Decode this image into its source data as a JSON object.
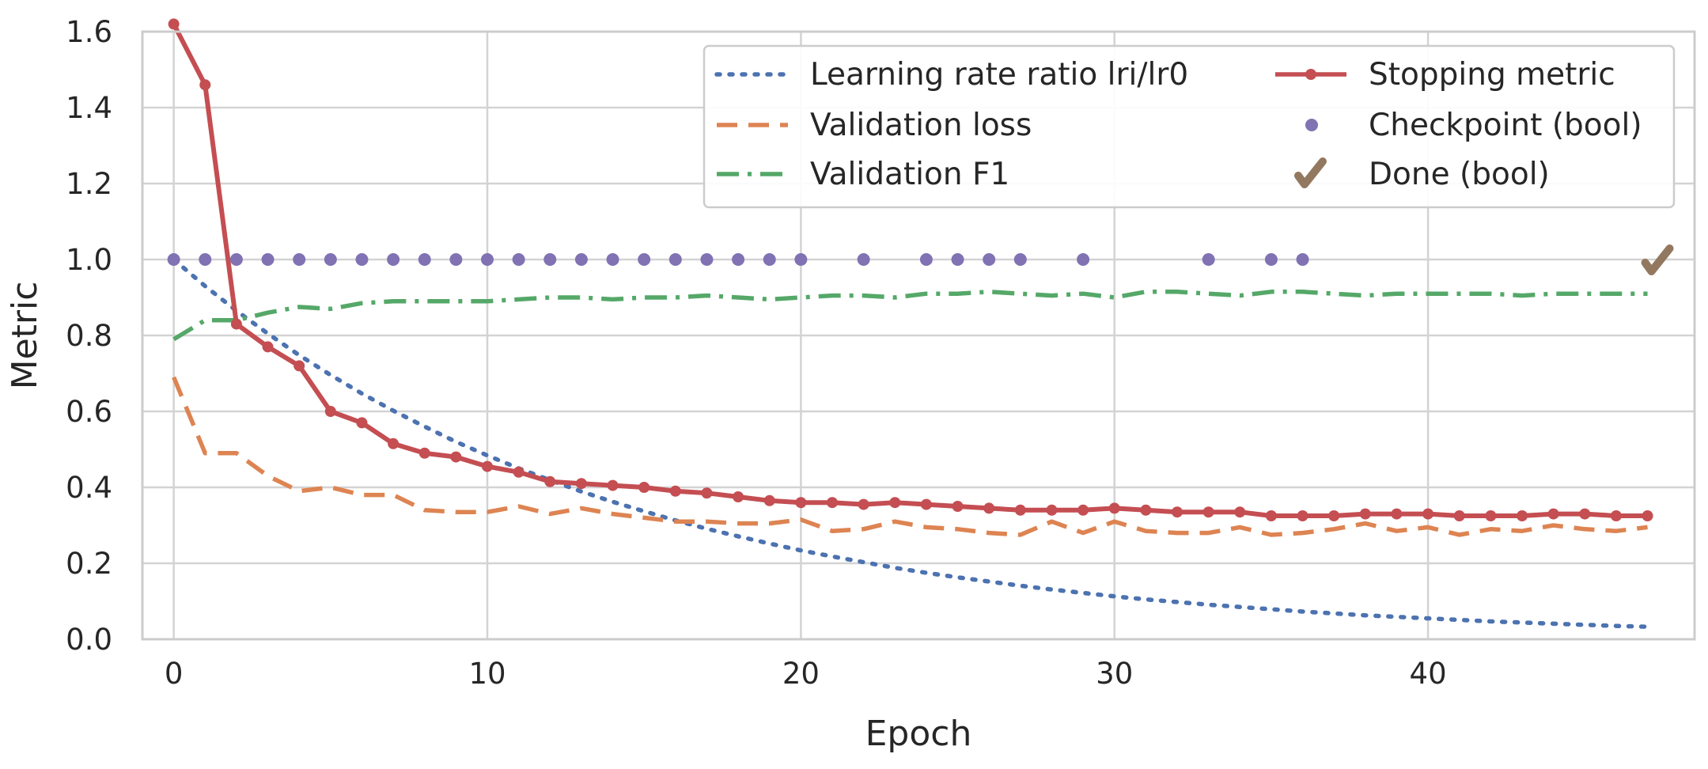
{
  "chart_data": {
    "type": "line",
    "title": "",
    "xlabel": "Epoch",
    "ylabel": "Metric",
    "xlim": [
      -1,
      48.5
    ],
    "ylim": [
      0,
      1.6
    ],
    "xticks": [
      "0",
      "10",
      "20",
      "30",
      "40"
    ],
    "xtick_values": [
      0,
      10,
      20,
      30,
      40
    ],
    "yticks": [
      "0.0",
      "0.2",
      "0.4",
      "0.6",
      "0.8",
      "1.0",
      "1.2",
      "1.4",
      "1.6"
    ],
    "ytick_values": [
      0,
      0.2,
      0.4,
      0.6,
      0.8,
      1.0,
      1.2,
      1.4,
      1.6
    ],
    "grid": true,
    "legend_position": "top-right",
    "series": [
      {
        "name": "Learning rate ratio lri/lr0",
        "style": "dotted",
        "color": "#4C72B0",
        "x": [
          0,
          1,
          2,
          3,
          4,
          5,
          6,
          7,
          8,
          9,
          10,
          11,
          12,
          13,
          14,
          15,
          16,
          17,
          18,
          19,
          20,
          21,
          22,
          23,
          24,
          25,
          26,
          27,
          28,
          29,
          30,
          31,
          32,
          33,
          34,
          35,
          36,
          37,
          38,
          39,
          40,
          41,
          42,
          43,
          44,
          45,
          46,
          47
        ],
        "values": [
          1.0,
          0.93,
          0.865,
          0.805,
          0.748,
          0.696,
          0.647,
          0.602,
          0.56,
          0.52,
          0.484,
          0.45,
          0.419,
          0.389,
          0.362,
          0.337,
          0.313,
          0.291,
          0.271,
          0.252,
          0.234,
          0.218,
          0.203,
          0.188,
          0.175,
          0.163,
          0.152,
          0.141,
          0.131,
          0.122,
          0.113,
          0.105,
          0.098,
          0.091,
          0.085,
          0.079,
          0.073,
          0.068,
          0.063,
          0.059,
          0.055,
          0.051,
          0.047,
          0.044,
          0.041,
          0.038,
          0.035,
          0.033
        ]
      },
      {
        "name": "Validation loss",
        "style": "dashed",
        "color": "#DD8452",
        "x": [
          0,
          1,
          2,
          3,
          4,
          5,
          6,
          7,
          8,
          9,
          10,
          11,
          12,
          13,
          14,
          15,
          16,
          17,
          18,
          19,
          20,
          21,
          22,
          23,
          24,
          25,
          26,
          27,
          28,
          29,
          30,
          31,
          32,
          33,
          34,
          35,
          36,
          37,
          38,
          39,
          40,
          41,
          42,
          43,
          44,
          45,
          46,
          47
        ],
        "values": [
          0.69,
          0.49,
          0.49,
          0.43,
          0.39,
          0.4,
          0.38,
          0.38,
          0.34,
          0.335,
          0.335,
          0.35,
          0.33,
          0.345,
          0.33,
          0.32,
          0.31,
          0.31,
          0.305,
          0.305,
          0.315,
          0.285,
          0.29,
          0.31,
          0.295,
          0.29,
          0.28,
          0.275,
          0.31,
          0.28,
          0.31,
          0.285,
          0.28,
          0.28,
          0.295,
          0.275,
          0.28,
          0.29,
          0.305,
          0.285,
          0.295,
          0.275,
          0.29,
          0.285,
          0.3,
          0.29,
          0.285,
          0.295
        ]
      },
      {
        "name": "Validation F1",
        "style": "dashdot",
        "color": "#55A868",
        "x": [
          0,
          1,
          2,
          3,
          4,
          5,
          6,
          7,
          8,
          9,
          10,
          11,
          12,
          13,
          14,
          15,
          16,
          17,
          18,
          19,
          20,
          21,
          22,
          23,
          24,
          25,
          26,
          27,
          28,
          29,
          30,
          31,
          32,
          33,
          34,
          35,
          36,
          37,
          38,
          39,
          40,
          41,
          42,
          43,
          44,
          45,
          46,
          47
        ],
        "values": [
          0.79,
          0.84,
          0.84,
          0.86,
          0.875,
          0.87,
          0.885,
          0.89,
          0.89,
          0.89,
          0.89,
          0.895,
          0.9,
          0.9,
          0.895,
          0.9,
          0.9,
          0.905,
          0.9,
          0.895,
          0.9,
          0.905,
          0.905,
          0.9,
          0.91,
          0.91,
          0.915,
          0.91,
          0.905,
          0.91,
          0.9,
          0.915,
          0.915,
          0.91,
          0.905,
          0.915,
          0.915,
          0.91,
          0.905,
          0.91,
          0.91,
          0.91,
          0.91,
          0.905,
          0.91,
          0.91,
          0.91,
          0.91
        ]
      },
      {
        "name": "Stopping metric",
        "style": "solid-marker",
        "color": "#C44E52",
        "x": [
          0,
          1,
          2,
          3,
          4,
          5,
          6,
          7,
          8,
          9,
          10,
          11,
          12,
          13,
          14,
          15,
          16,
          17,
          18,
          19,
          20,
          21,
          22,
          23,
          24,
          25,
          26,
          27,
          28,
          29,
          30,
          31,
          32,
          33,
          34,
          35,
          36,
          37,
          38,
          39,
          40,
          41,
          42,
          43,
          44,
          45,
          46,
          47
        ],
        "values": [
          1.62,
          1.46,
          0.83,
          0.77,
          0.72,
          0.6,
          0.57,
          0.515,
          0.49,
          0.48,
          0.455,
          0.44,
          0.415,
          0.41,
          0.405,
          0.4,
          0.39,
          0.385,
          0.375,
          0.365,
          0.36,
          0.36,
          0.355,
          0.36,
          0.355,
          0.35,
          0.345,
          0.34,
          0.34,
          0.34,
          0.345,
          0.34,
          0.335,
          0.335,
          0.335,
          0.325,
          0.325,
          0.325,
          0.33,
          0.33,
          0.33,
          0.325,
          0.325,
          0.325,
          0.33,
          0.33,
          0.325,
          0.325
        ]
      },
      {
        "name": "Checkpoint (bool)",
        "style": "points",
        "color": "#8172B3",
        "x": [
          0,
          1,
          2,
          3,
          4,
          5,
          6,
          7,
          8,
          9,
          10,
          11,
          12,
          13,
          14,
          15,
          16,
          17,
          18,
          19,
          20,
          22,
          24,
          25,
          26,
          27,
          29,
          33,
          35,
          36
        ],
        "values": [
          1,
          1,
          1,
          1,
          1,
          1,
          1,
          1,
          1,
          1,
          1,
          1,
          1,
          1,
          1,
          1,
          1,
          1,
          1,
          1,
          1,
          1,
          1,
          1,
          1,
          1,
          1,
          1,
          1,
          1
        ]
      },
      {
        "name": "Done (bool)",
        "style": "check",
        "color": "#937860",
        "x": [
          47
        ],
        "values": [
          1
        ]
      }
    ]
  }
}
